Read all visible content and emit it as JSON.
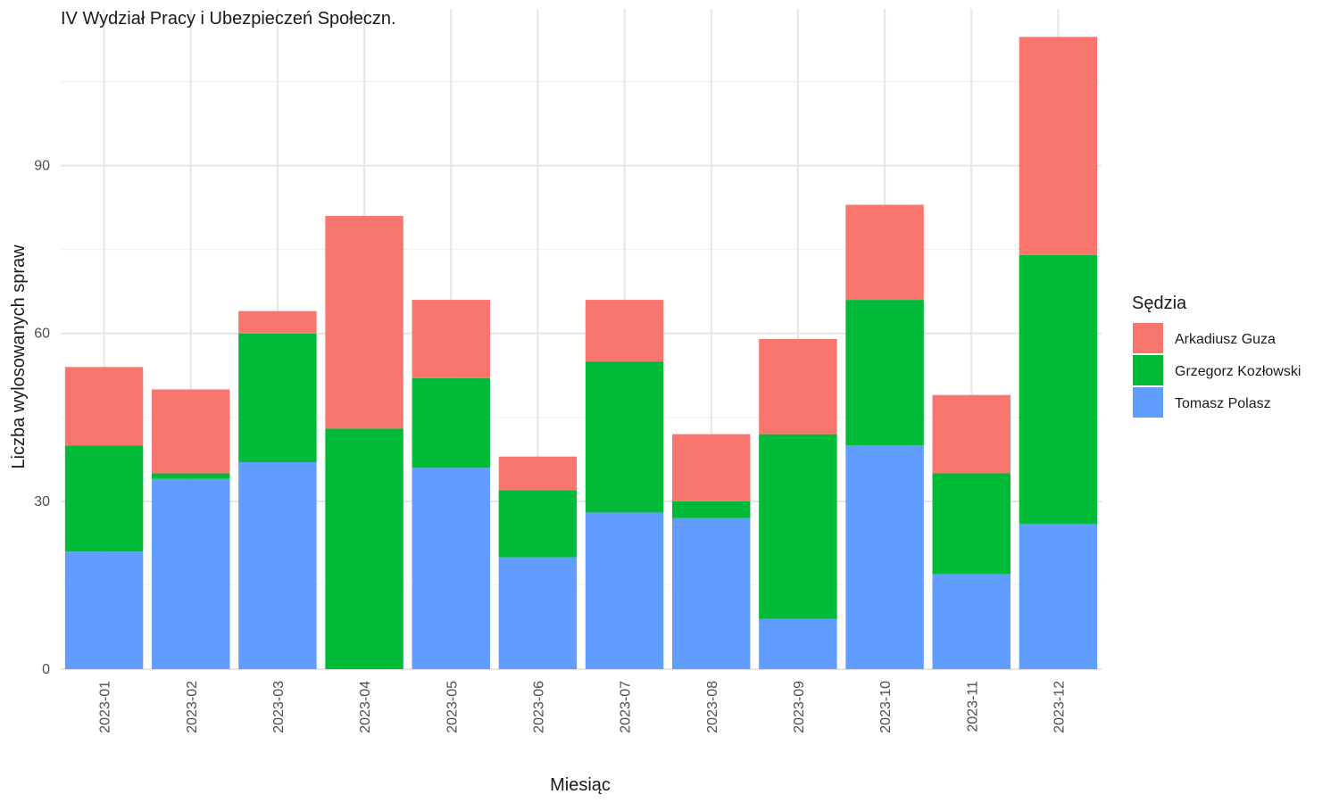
{
  "chart_data": {
    "type": "bar",
    "stacked": true,
    "title": "IV Wydział Pracy i Ubezpieczeń Społeczn.",
    "xlabel": "Miesiąc",
    "ylabel": "Liczba wylosowanych spraw",
    "ylim": [
      0,
      118
    ],
    "yticks": [
      0,
      30,
      60,
      90
    ],
    "grid": true,
    "legend_title": "Sędzia",
    "legend_position": "right",
    "categories": [
      "2023-01",
      "2023-02",
      "2023-03",
      "2023-04",
      "2023-05",
      "2023-06",
      "2023-07",
      "2023-08",
      "2023-09",
      "2023-10",
      "2023-11",
      "2023-12"
    ],
    "series": [
      {
        "name": "Tomasz Polasz",
        "color": "#619CFF",
        "values": [
          21,
          34,
          37,
          0,
          36,
          20,
          28,
          27,
          9,
          40,
          17,
          26
        ]
      },
      {
        "name": "Grzegorz Kozłowski",
        "color": "#00BA38",
        "values": [
          19,
          1,
          23,
          43,
          16,
          12,
          27,
          3,
          33,
          26,
          18,
          48
        ]
      },
      {
        "name": "Arkadiusz Guza",
        "color": "#F8766D",
        "values": [
          14,
          15,
          4,
          38,
          14,
          6,
          11,
          12,
          17,
          17,
          14,
          39
        ]
      }
    ],
    "legend_order": [
      "Arkadiusz Guza",
      "Grzegorz Kozłowski",
      "Tomasz Polasz"
    ]
  }
}
